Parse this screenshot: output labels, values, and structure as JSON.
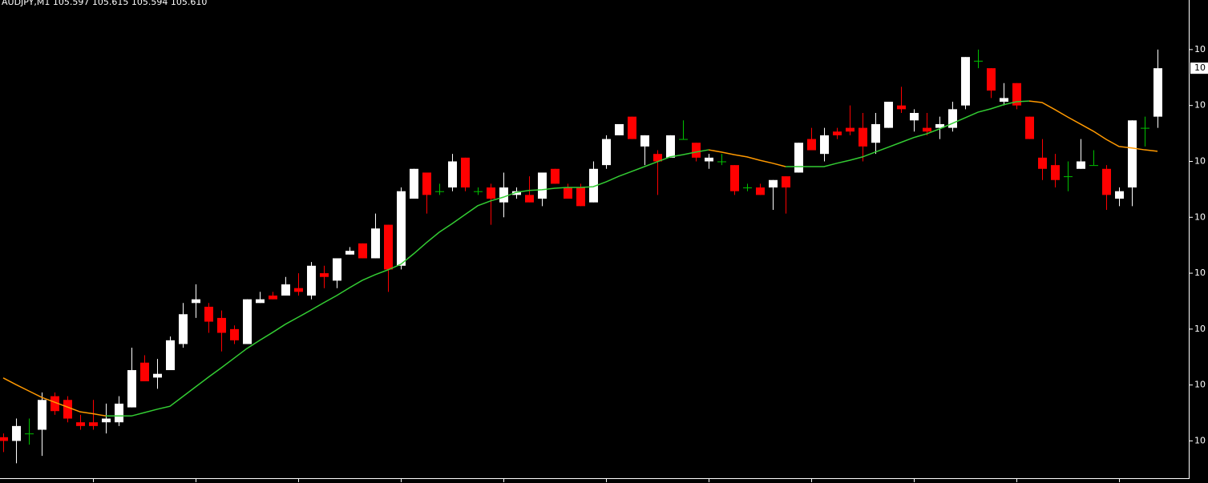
{
  "chart_data": {
    "type": "candlestick",
    "title": "AUDJPY,M1  105.597 105.615 105.594 105.610",
    "open": [
      105.511,
      105.51,
      105.512,
      105.513,
      105.522,
      105.521,
      105.515,
      105.515,
      105.515,
      105.515,
      105.519,
      105.531,
      105.527,
      105.529,
      105.536,
      105.547,
      105.546,
      105.543,
      105.54,
      105.536,
      105.547,
      105.549,
      105.549,
      105.551,
      105.549,
      105.555,
      105.553,
      105.56,
      105.563,
      105.559,
      105.568,
      105.557,
      105.575,
      105.582,
      105.577,
      105.578,
      105.586,
      105.577,
      105.578,
      105.574,
      105.576,
      105.576,
      105.575,
      105.583,
      105.578,
      105.578,
      105.574,
      105.584,
      105.592,
      105.597,
      105.589,
      105.587,
      105.586,
      105.591,
      105.59,
      105.585,
      105.585,
      105.584,
      105.578,
      105.578,
      105.578,
      105.581,
      105.582,
      105.591,
      105.587,
      105.593,
      105.594,
      105.594,
      105.59,
      105.594,
      105.6,
      105.596,
      105.594,
      105.594,
      105.594,
      105.6,
      105.612,
      105.61,
      105.601,
      105.606,
      105.597,
      105.586,
      105.584,
      105.581,
      105.583,
      105.584,
      105.583,
      105.575,
      105.578,
      105.594,
      105.597
    ],
    "high": [
      105.512,
      105.516,
      105.516,
      105.523,
      105.523,
      105.522,
      105.517,
      105.521,
      105.52,
      105.522,
      105.535,
      105.533,
      105.532,
      105.538,
      105.547,
      105.552,
      105.547,
      105.545,
      105.541,
      105.548,
      105.55,
      105.55,
      105.554,
      105.555,
      105.558,
      105.557,
      105.559,
      105.562,
      105.563,
      105.571,
      105.568,
      105.578,
      105.583,
      105.582,
      105.579,
      105.587,
      105.586,
      105.578,
      105.579,
      105.582,
      105.578,
      105.581,
      105.582,
      105.583,
      105.579,
      105.579,
      105.585,
      105.592,
      105.595,
      105.597,
      105.592,
      105.588,
      105.592,
      105.596,
      105.59,
      105.587,
      105.587,
      105.584,
      105.579,
      105.579,
      105.58,
      105.581,
      105.59,
      105.594,
      105.594,
      105.594,
      105.6,
      105.598,
      105.598,
      105.601,
      105.605,
      105.599,
      105.598,
      105.597,
      105.601,
      105.613,
      105.615,
      105.61,
      105.606,
      105.606,
      105.597,
      105.591,
      105.587,
      105.585,
      105.591,
      105.588,
      105.584,
      105.578,
      105.596,
      105.597,
      105.615
    ],
    "low": [
      105.507,
      105.504,
      105.509,
      105.506,
      105.517,
      105.515,
      105.513,
      105.513,
      105.512,
      105.514,
      105.519,
      105.526,
      105.524,
      105.529,
      105.535,
      105.543,
      105.539,
      105.534,
      105.536,
      105.536,
      105.547,
      105.548,
      105.549,
      105.549,
      105.548,
      105.551,
      105.551,
      105.56,
      105.559,
      105.559,
      105.55,
      105.556,
      105.575,
      105.571,
      105.576,
      105.577,
      105.577,
      105.576,
      105.568,
      105.57,
      105.575,
      105.574,
      105.573,
      105.579,
      105.575,
      105.573,
      105.574,
      105.583,
      105.592,
      105.591,
      105.584,
      105.576,
      105.586,
      105.591,
      105.585,
      105.583,
      105.584,
      105.576,
      105.577,
      105.576,
      105.572,
      105.571,
      105.582,
      105.588,
      105.585,
      105.591,
      105.592,
      105.585,
      105.587,
      105.594,
      105.598,
      105.593,
      105.592,
      105.591,
      105.593,
      105.599,
      105.61,
      105.602,
      105.6,
      105.599,
      105.591,
      105.58,
      105.578,
      105.577,
      105.583,
      105.584,
      105.572,
      105.573,
      105.573,
      105.589,
      105.594
    ],
    "close": [
      105.51,
      105.514,
      105.512,
      105.521,
      105.518,
      105.516,
      105.514,
      105.514,
      105.516,
      105.52,
      105.529,
      105.526,
      105.528,
      105.537,
      105.544,
      105.548,
      105.542,
      105.539,
      105.537,
      105.548,
      105.548,
      105.548,
      105.552,
      105.55,
      105.557,
      105.554,
      105.559,
      105.561,
      105.559,
      105.567,
      105.556,
      105.577,
      105.583,
      105.576,
      105.577,
      105.585,
      105.578,
      105.577,
      105.575,
      105.578,
      105.577,
      105.574,
      105.582,
      105.579,
      105.575,
      105.573,
      105.583,
      105.591,
      105.595,
      105.591,
      105.592,
      105.585,
      105.592,
      105.591,
      105.586,
      105.586,
      105.585,
      105.577,
      105.578,
      105.576,
      105.58,
      105.578,
      105.59,
      105.588,
      105.592,
      105.592,
      105.593,
      105.589,
      105.595,
      105.601,
      105.599,
      105.598,
      105.593,
      105.595,
      105.599,
      105.613,
      105.612,
      105.604,
      105.602,
      105.6,
      105.591,
      105.583,
      105.58,
      105.581,
      105.585,
      105.584,
      105.576,
      105.577,
      105.596,
      105.594,
      105.61
    ],
    "up_color": "#ffffff",
    "down_color": "#ff0000",
    "doji_color": "#00c000",
    "ma": {
      "rising_color": "#33cc33",
      "falling_color": "#ff9900",
      "values": [
        105.5269,
        105.5251,
        105.5234,
        105.5217,
        105.5204,
        105.5191,
        105.5178,
        105.5173,
        105.5167,
        105.5167,
        105.5167,
        105.5176,
        105.5185,
        105.5193,
        105.5219,
        105.5245,
        105.5271,
        105.5296,
        105.5322,
        105.5348,
        105.537,
        105.5391,
        105.5413,
        105.5432,
        105.5451,
        105.5471,
        105.549,
        105.5511,
        105.5531,
        105.5546,
        105.5559,
        105.5574,
        105.5602,
        105.5632,
        105.566,
        105.5683,
        105.5707,
        105.5731,
        105.5744,
        105.5754,
        105.5767,
        105.5772,
        105.5774,
        105.5778,
        105.578,
        105.578,
        105.5782,
        105.5795,
        105.581,
        105.5823,
        105.5836,
        105.5849,
        105.5862,
        105.5868,
        105.5875,
        105.5881,
        105.5875,
        105.5868,
        105.5862,
        105.5853,
        105.5845,
        105.5836,
        105.5836,
        105.5836,
        105.5836,
        105.5845,
        105.5853,
        105.5862,
        105.5875,
        105.5888,
        105.5901,
        105.5914,
        105.5924,
        105.5937,
        105.5952,
        105.5967,
        105.5982,
        105.5991,
        105.6002,
        105.601,
        105.6012,
        105.6008,
        105.5989,
        105.5969,
        105.595,
        105.5931,
        105.5909,
        105.589,
        105.5886,
        105.5881,
        105.5877
      ]
    },
    "ylim": [
      105.5,
      105.6283
    ],
    "yticks": [
      {
        "value": 105.615,
        "label": "10"
      },
      {
        "value": 105.6,
        "label": "10"
      },
      {
        "value": 105.585,
        "label": "10"
      },
      {
        "value": 105.57,
        "label": "10"
      },
      {
        "value": 105.555,
        "label": "10"
      },
      {
        "value": 105.54,
        "label": "10"
      },
      {
        "value": 105.525,
        "label": "10"
      },
      {
        "value": 105.51,
        "label": "10"
      }
    ],
    "last_price": {
      "value": 105.61,
      "label": "10"
    }
  }
}
